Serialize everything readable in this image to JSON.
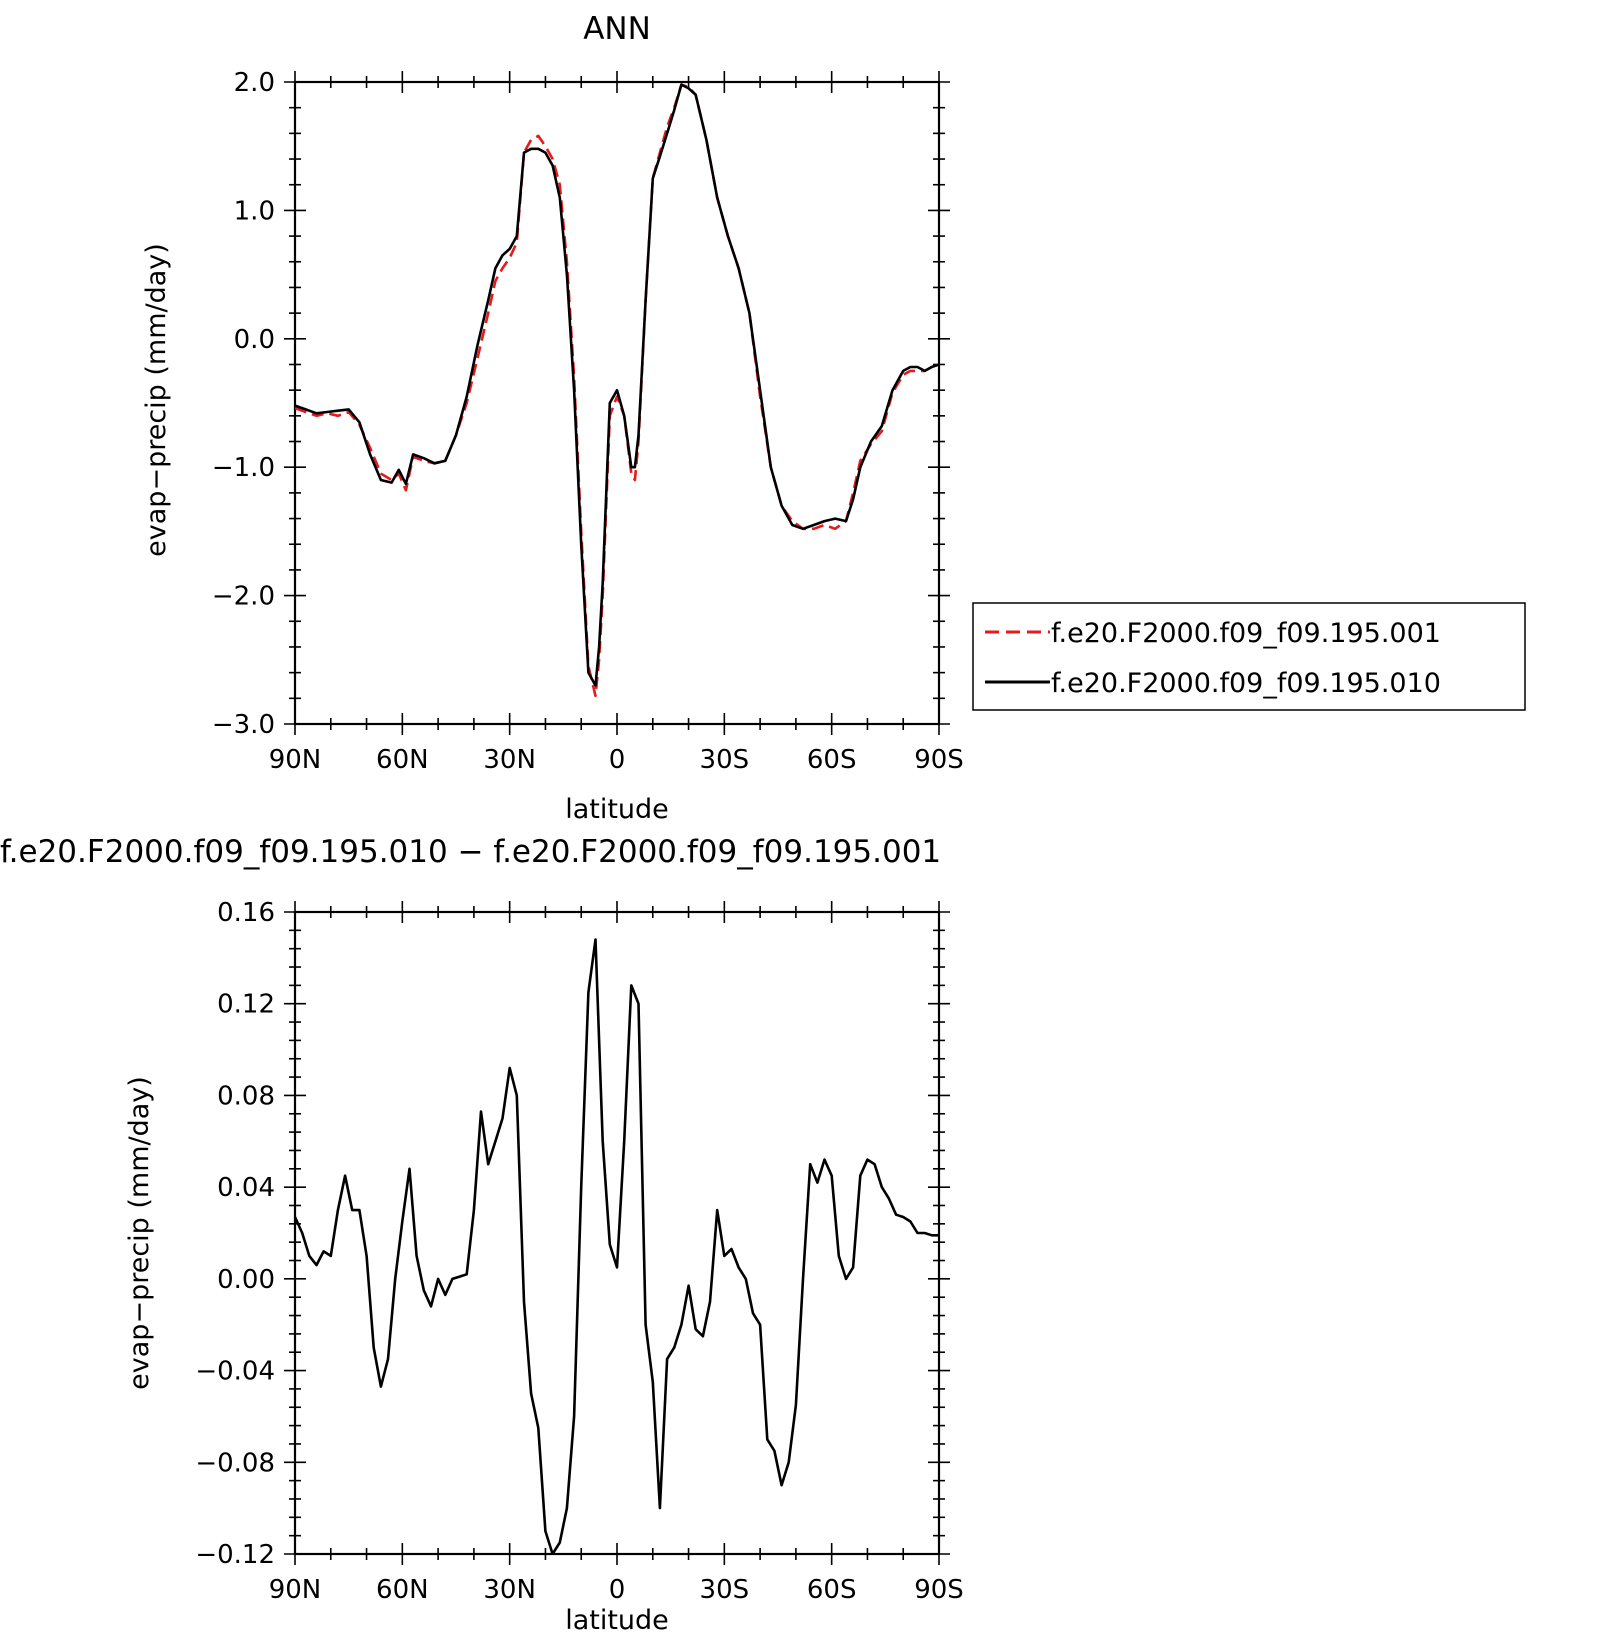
{
  "chart_data": [
    {
      "type": "line",
      "title": "ANN",
      "xlabel": "latitude",
      "ylabel": "evap−precip (mm/day)",
      "xlim": [
        90,
        -90
      ],
      "ylim": [
        -3.0,
        2.0
      ],
      "x_ticks": [
        90,
        60,
        30,
        0,
        -30,
        -60,
        -90
      ],
      "x_tick_labels": [
        "90N",
        "60N",
        "30N",
        "0",
        "30S",
        "60S",
        "90S"
      ],
      "y_ticks": [
        2.0,
        1.0,
        0.0,
        -1.0,
        -2.0,
        -3.0
      ],
      "y_tick_labels": [
        "2.0",
        "1.0",
        "0.0",
        "−1.0",
        "−2.0",
        "−3.0"
      ],
      "grid": false,
      "legend_position": "right",
      "series": [
        {
          "name": "f.e20.F2000.f09_f09.195.001",
          "color": "#e41a1c",
          "dash": "dashed",
          "x": [
            90,
            87,
            84,
            81,
            78,
            75,
            72,
            69,
            66,
            63,
            61,
            59,
            57,
            54,
            51,
            48,
            45,
            42,
            39,
            36,
            34,
            32,
            30,
            28,
            26,
            24,
            22,
            20,
            18,
            16,
            14,
            12,
            10,
            8,
            6,
            5,
            4,
            2,
            0,
            -2,
            -4,
            -5,
            -6,
            -8,
            -10,
            -12,
            -14,
            -16,
            -18,
            -20,
            -22,
            -25,
            -28,
            -31,
            -34,
            -37,
            -40,
            -43,
            -46,
            -49,
            -52,
            -55,
            -58,
            -61,
            -64,
            -66,
            -68,
            -71,
            -74,
            -77,
            -80,
            -82,
            -84,
            -86,
            -88,
            -90
          ],
          "values": [
            -0.54,
            -0.57,
            -0.6,
            -0.58,
            -0.6,
            -0.57,
            -0.67,
            -0.85,
            -1.05,
            -1.1,
            -1.05,
            -1.18,
            -0.92,
            -0.95,
            -0.97,
            -0.95,
            -0.75,
            -0.5,
            -0.15,
            0.2,
            0.45,
            0.55,
            0.63,
            0.75,
            1.45,
            1.55,
            1.58,
            1.5,
            1.4,
            1.2,
            0.6,
            -0.3,
            -1.5,
            -2.55,
            -2.78,
            -2.5,
            -2.0,
            -0.6,
            -0.45,
            -0.6,
            -1.05,
            -1.1,
            -0.8,
            0.3,
            1.25,
            1.45,
            1.65,
            1.8,
            1.98,
            1.96,
            1.9,
            1.55,
            1.1,
            0.8,
            0.55,
            0.2,
            -0.45,
            -1.0,
            -1.3,
            -1.42,
            -1.48,
            -1.48,
            -1.45,
            -1.48,
            -1.42,
            -1.2,
            -0.95,
            -0.82,
            -0.72,
            -0.42,
            -0.28,
            -0.25,
            -0.25,
            -0.25,
            -0.22,
            -0.2
          ]
        },
        {
          "name": "f.e20.F2000.f09_f09.195.010",
          "color": "#000000",
          "dash": "solid",
          "x": [
            90,
            87,
            84,
            81,
            78,
            75,
            72,
            69,
            66,
            63,
            61,
            59,
            57,
            54,
            51,
            48,
            45,
            42,
            39,
            36,
            34,
            32,
            30,
            28,
            26,
            24,
            22,
            20,
            18,
            16,
            14,
            12,
            10,
            8,
            6,
            5,
            4,
            2,
            0,
            -2,
            -4,
            -5,
            -6,
            -8,
            -10,
            -12,
            -14,
            -16,
            -18,
            -20,
            -22,
            -25,
            -28,
            -31,
            -34,
            -37,
            -40,
            -43,
            -46,
            -49,
            -52,
            -55,
            -58,
            -61,
            -64,
            -66,
            -68,
            -71,
            -74,
            -77,
            -80,
            -82,
            -84,
            -86,
            -88,
            -90
          ],
          "values": [
            -0.52,
            -0.55,
            -0.58,
            -0.57,
            -0.56,
            -0.55,
            -0.65,
            -0.9,
            -1.1,
            -1.12,
            -1.02,
            -1.13,
            -0.9,
            -0.93,
            -0.97,
            -0.95,
            -0.75,
            -0.45,
            -0.05,
            0.3,
            0.55,
            0.65,
            0.7,
            0.8,
            1.45,
            1.48,
            1.48,
            1.45,
            1.35,
            1.1,
            0.5,
            -0.4,
            -1.6,
            -2.6,
            -2.7,
            -2.4,
            -1.9,
            -0.5,
            -0.4,
            -0.6,
            -1.0,
            -1.0,
            -0.75,
            0.3,
            1.25,
            1.42,
            1.6,
            1.78,
            1.98,
            1.95,
            1.9,
            1.55,
            1.1,
            0.8,
            0.55,
            0.2,
            -0.4,
            -1.0,
            -1.3,
            -1.45,
            -1.48,
            -1.45,
            -1.42,
            -1.4,
            -1.42,
            -1.25,
            -1.0,
            -0.8,
            -0.68,
            -0.4,
            -0.25,
            -0.22,
            -0.22,
            -0.25,
            -0.22,
            -0.2
          ]
        }
      ]
    },
    {
      "type": "line",
      "title": "f.e20.F2000.f09_f09.195.010 − f.e20.F2000.f09_f09.195.001",
      "xlabel": "latitude",
      "ylabel": "evap−precip (mm/day)",
      "xlim": [
        90,
        -90
      ],
      "ylim": [
        -0.12,
        0.16
      ],
      "x_ticks": [
        90,
        60,
        30,
        0,
        -30,
        -60,
        -90
      ],
      "x_tick_labels": [
        "90N",
        "60N",
        "30N",
        "0",
        "30S",
        "60S",
        "90S"
      ],
      "y_ticks": [
        0.16,
        0.12,
        0.08,
        0.04,
        0.0,
        -0.04,
        -0.08,
        -0.12
      ],
      "y_tick_labels": [
        "0.16",
        "0.12",
        "0.08",
        "0.04",
        "0.00",
        "−0.04",
        "−0.08",
        "−0.12"
      ],
      "grid": false,
      "series": [
        {
          "color": "#000000",
          "dash": "solid",
          "x": [
            90,
            88,
            86,
            84,
            82,
            80,
            78,
            76,
            74,
            72,
            70,
            68,
            66,
            64,
            62,
            60,
            58,
            56,
            54,
            52,
            50,
            48,
            46,
            44,
            42,
            40,
            38,
            36,
            34,
            32,
            30,
            28,
            26,
            24,
            22,
            20,
            18,
            16,
            14,
            12,
            10,
            8,
            6,
            4,
            2,
            0,
            -2,
            -4,
            -6,
            -8,
            -10,
            -12,
            -14,
            -16,
            -18,
            -20,
            -22,
            -24,
            -26,
            -28,
            -30,
            -32,
            -34,
            -36,
            -38,
            -40,
            -42,
            -44,
            -46,
            -48,
            -50,
            -52,
            -54,
            -56,
            -58,
            -60,
            -62,
            -64,
            -66,
            -68,
            -70,
            -72,
            -74,
            -76,
            -78,
            -80,
            -82,
            -84,
            -86,
            -88,
            -90
          ],
          "values": [
            0.027,
            0.02,
            0.01,
            0.006,
            0.012,
            0.01,
            0.03,
            0.045,
            0.03,
            0.03,
            0.01,
            -0.03,
            -0.047,
            -0.035,
            0.0,
            0.025,
            0.048,
            0.01,
            -0.005,
            -0.012,
            0.0,
            -0.007,
            0.0,
            0.001,
            0.002,
            0.03,
            0.073,
            0.05,
            0.06,
            0.07,
            0.092,
            0.08,
            -0.01,
            -0.05,
            -0.065,
            -0.11,
            -0.12,
            -0.115,
            -0.1,
            -0.06,
            0.04,
            0.125,
            0.148,
            0.06,
            0.015,
            0.005,
            0.06,
            0.128,
            0.12,
            -0.02,
            -0.045,
            -0.1,
            -0.035,
            -0.03,
            -0.02,
            -0.003,
            -0.022,
            -0.025,
            -0.01,
            0.03,
            0.01,
            0.013,
            0.005,
            0.0,
            -0.015,
            -0.02,
            -0.07,
            -0.075,
            -0.09,
            -0.08,
            -0.055,
            0.0,
            0.05,
            0.042,
            0.052,
            0.045,
            0.01,
            0.0,
            0.005,
            0.045,
            0.052,
            0.05,
            0.04,
            0.035,
            0.028,
            0.027,
            0.025,
            0.02,
            0.02,
            0.019,
            0.019
          ]
        }
      ]
    }
  ]
}
